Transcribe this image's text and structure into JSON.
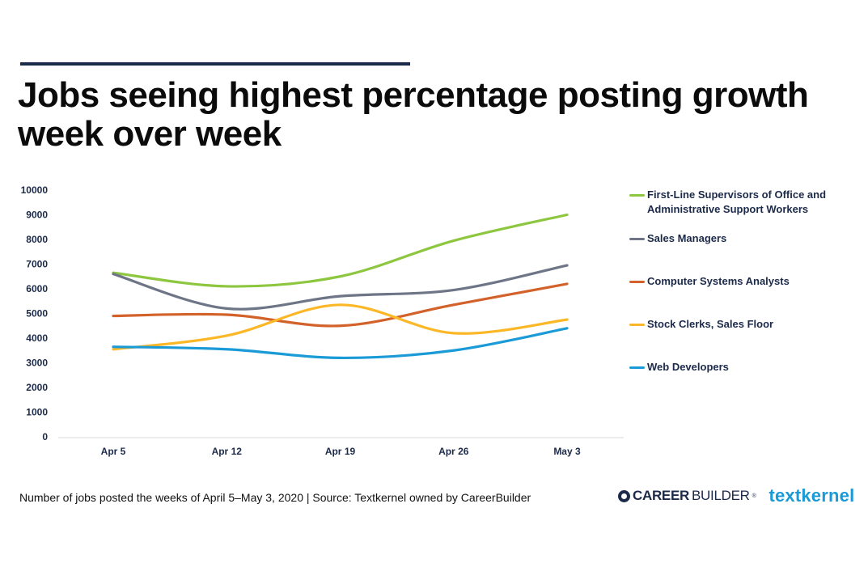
{
  "header": {
    "title": "Jobs seeing highest percentage posting growth week over week"
  },
  "footer": {
    "note": "Number of jobs posted the weeks of April 5–May 3, 2020  |  Source: Textkernel owned by CareerBuilder"
  },
  "logos": {
    "careerbuilder_bold": "CAREER",
    "careerbuilder_light": "BUILDER",
    "careerbuilder_mark": "®",
    "textkernel": "textkernel"
  },
  "chart_data": {
    "type": "line",
    "title": "Jobs seeing highest percentage posting growth week over week",
    "xlabel": "",
    "ylabel": "",
    "categories": [
      "Apr 5",
      "Apr 12",
      "Apr 19",
      "Apr 26",
      "May 3"
    ],
    "ylim": [
      0,
      10000
    ],
    "yticks": [
      0,
      1000,
      2000,
      3000,
      4000,
      5000,
      6000,
      7000,
      8000,
      9000,
      10000
    ],
    "smooth": true,
    "grid": false,
    "legend_position": "right",
    "series": [
      {
        "name": "First-Line Supervisors of Office and Administrative Support Workers",
        "color": "#8dc63f",
        "values": [
          6650,
          6100,
          6500,
          7950,
          9000
        ]
      },
      {
        "name": "Sales Managers",
        "color": "#6e7587",
        "values": [
          6600,
          5200,
          5700,
          5950,
          6950
        ]
      },
      {
        "name": "Computer Systems Analysts",
        "color": "#d2622a",
        "values": [
          4900,
          4950,
          4500,
          5350,
          6200
        ]
      },
      {
        "name": "Stock Clerks, Sales Floor",
        "color": "#fbb726",
        "values": [
          3550,
          4100,
          5350,
          4200,
          4750
        ]
      },
      {
        "name": "Web Developers",
        "color": "#1a9ad6",
        "values": [
          3650,
          3550,
          3200,
          3500,
          4400
        ]
      }
    ]
  }
}
